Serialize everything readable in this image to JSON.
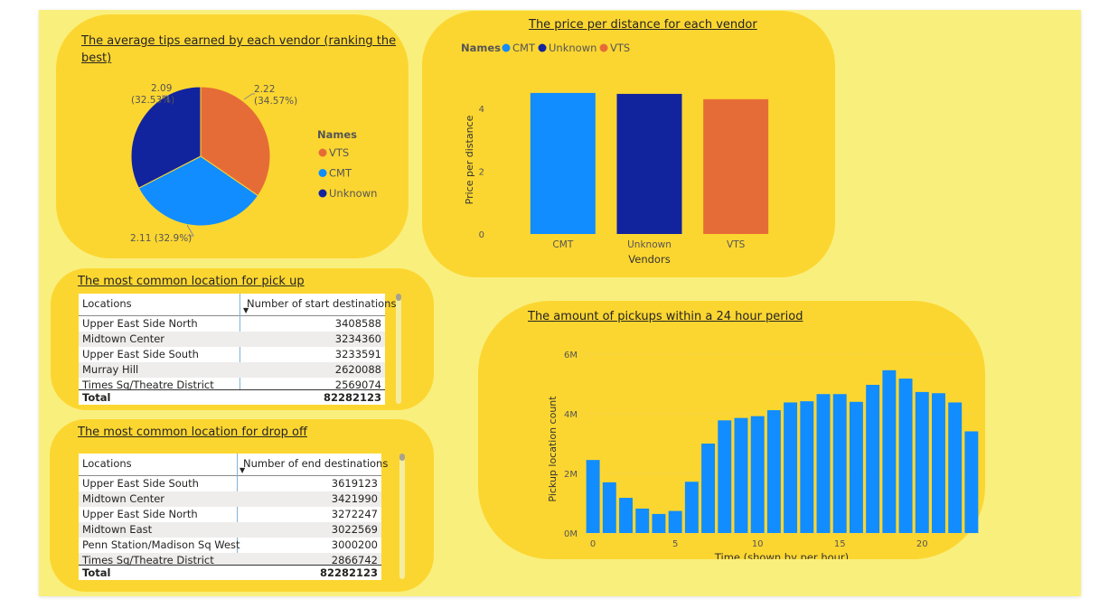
{
  "colors": {
    "VTS": "#e66c37",
    "CMT": "#118dff",
    "Unknown": "#12239e",
    "card": "#fcd630",
    "background": "#f9ef7d"
  },
  "tips_card": {
    "title_line1": "The average tips earned by each vendor (ranking the",
    "title_line2": "best)",
    "legend_title": "Names",
    "legend": [
      "VTS",
      "CMT",
      "Unknown"
    ]
  },
  "price_card": {
    "title": "The price per distance for each vendor",
    "legend_title": "Names",
    "legend": [
      "CMT",
      "Unknown",
      "VTS"
    ]
  },
  "pickup_card": {
    "title": "The most common location for pick up",
    "col_location": "Locations",
    "col_number": "Number of start destinations",
    "rows": [
      {
        "location": "Upper East Side North",
        "value": "3408588"
      },
      {
        "location": "Midtown Center",
        "value": "3234360"
      },
      {
        "location": "Upper East Side South",
        "value": "3233591"
      },
      {
        "location": "Murray Hill",
        "value": "2620088"
      },
      {
        "location": "Times Sq/Theatre District",
        "value": "2569074"
      }
    ],
    "total_label": "Total",
    "total_value": "82282123"
  },
  "dropoff_card": {
    "title": "The most common location for drop off",
    "col_location": "Locations",
    "col_number": "Number of end destinations",
    "rows": [
      {
        "location": "Upper East Side South",
        "value": "3619123"
      },
      {
        "location": "Midtown Center",
        "value": "3421990"
      },
      {
        "location": "Upper East Side North",
        "value": "3272247"
      },
      {
        "location": "Midtown East",
        "value": "3022569"
      },
      {
        "location": "Penn Station/Madison Sq West",
        "value": "3000200"
      },
      {
        "location": "Times Sq/Theatre District",
        "value": "2866742"
      }
    ],
    "total_label": "Total",
    "total_value": "82282123"
  },
  "hours_card": {
    "title": "The amount of pickups within a 24 hour period"
  },
  "chart_data": [
    {
      "type": "pie",
      "title": "The average tips earned by each vendor (ranking the best)",
      "legend_title": "Names",
      "legend_position": "right",
      "slices": [
        {
          "name": "VTS",
          "value": 2.22,
          "percent": "34.57%",
          "label": "2.22",
          "pct_label": "(34.57%)"
        },
        {
          "name": "CMT",
          "value": 2.11,
          "percent": "32.9%",
          "label": "2.11 (32.9%)",
          "pct_label": ""
        },
        {
          "name": "Unknown",
          "value": 2.09,
          "percent": "32.53%",
          "label": "2.09",
          "pct_label": "(32.53%)"
        }
      ]
    },
    {
      "type": "bar",
      "title": "The price per distance for each vendor",
      "categories": [
        "CMT",
        "Unknown",
        "VTS"
      ],
      "values": [
        4.5,
        4.47,
        4.3
      ],
      "xlabel": "Vendors",
      "ylabel": "Price per distance",
      "ylim": [
        0,
        4.9
      ],
      "yticks": [
        0,
        2,
        4
      ],
      "legend_title": "Names",
      "legend_position": "top-left"
    },
    {
      "type": "bar",
      "title": "The amount of pickups within a 24 hour period",
      "x": [
        0,
        1,
        2,
        3,
        4,
        5,
        6,
        7,
        8,
        9,
        10,
        11,
        12,
        13,
        14,
        15,
        16,
        17,
        18,
        19,
        20,
        21,
        22,
        23
      ],
      "values": [
        2450000,
        1700000,
        1180000,
        820000,
        640000,
        740000,
        1720000,
        3000000,
        3780000,
        3860000,
        3920000,
        4120000,
        4380000,
        4420000,
        4660000,
        4660000,
        4400000,
        4970000,
        5460000,
        5180000,
        4730000,
        4690000,
        4380000,
        3410000
      ],
      "xlabel": "Time (shown by per hour)",
      "ylabel": "Pickup location count",
      "ylim": [
        0,
        6000000
      ],
      "yticks": [
        0,
        2000000,
        4000000,
        6000000
      ],
      "ytick_labels": [
        "0M",
        "2M",
        "4M",
        "6M"
      ],
      "xticks": [
        0,
        5,
        10,
        15,
        20
      ]
    }
  ]
}
